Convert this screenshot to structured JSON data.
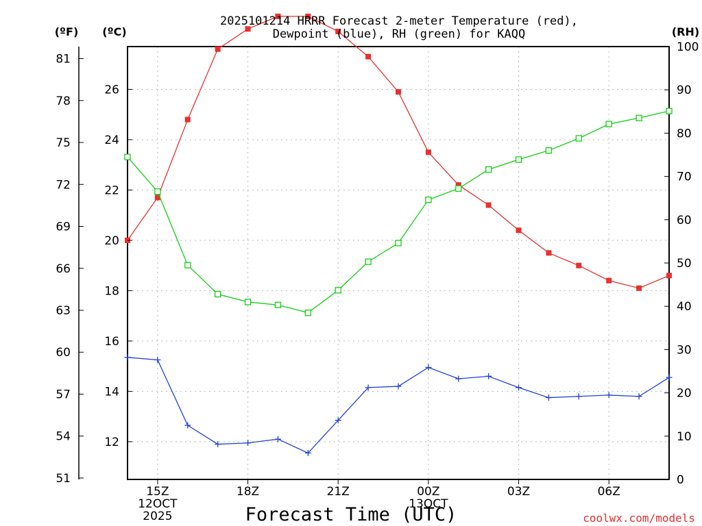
{
  "chart_data": {
    "type": "line",
    "title": [
      "2025101214 HRRR Forecast 2-meter Temperature (red),",
      "Dewpoint (blue), RH (green) for KAQQ"
    ],
    "xlabel": "Forecast Time (UTC)",
    "watermark": "coolwx.com/models",
    "unit_labels": {
      "fahrenheit": "(ºF)",
      "celsius": "(ºC)",
      "rh": "(RH)"
    },
    "x_hours": [
      14,
      15,
      16,
      17,
      18,
      19,
      20,
      21,
      22,
      23,
      24,
      25,
      26,
      27,
      28,
      29,
      30,
      31,
      32
    ],
    "xlim": [
      14,
      32
    ],
    "x_ticks": [
      {
        "hour": 15,
        "lines": [
          "15Z",
          "12OCT",
          "2025"
        ]
      },
      {
        "hour": 18,
        "lines": [
          "18Z"
        ]
      },
      {
        "hour": 21,
        "lines": [
          "21Z"
        ]
      },
      {
        "hour": 24,
        "lines": [
          "00Z",
          "13OCT"
        ]
      },
      {
        "hour": 27,
        "lines": [
          "03Z"
        ]
      },
      {
        "hour": 30,
        "lines": [
          "06Z"
        ]
      }
    ],
    "celsius_axis": {
      "range": [
        10.5,
        27.7
      ],
      "ticks": [
        12,
        14,
        16,
        18,
        20,
        22,
        24,
        26
      ]
    },
    "fahrenheit_axis": {
      "ticks": [
        51,
        54,
        57,
        60,
        63,
        66,
        69,
        72,
        75,
        78,
        81
      ]
    },
    "rh_axis": {
      "range": [
        0,
        100
      ],
      "ticks": [
        0,
        10,
        20,
        30,
        40,
        50,
        60,
        70,
        80,
        90,
        100
      ]
    },
    "series": [
      {
        "name": "2-meter Temperature",
        "unit": "C",
        "color": "#e83030",
        "marker": "filled-square",
        "values": [
          20.0,
          21.7,
          24.8,
          27.6,
          28.4,
          28.9,
          28.9,
          28.3,
          27.3,
          25.9,
          23.5,
          22.2,
          21.4,
          20.4,
          19.5,
          19.0,
          18.4,
          18.1,
          18.6
        ]
      },
      {
        "name": "Dewpoint",
        "unit": "C",
        "color": "#2040e0",
        "marker": "plus",
        "values": [
          15.35,
          15.25,
          12.65,
          11.9,
          11.95,
          12.1,
          11.55,
          12.85,
          14.15,
          14.2,
          14.95,
          14.5,
          14.6,
          14.15,
          13.75,
          13.8,
          13.85,
          13.8,
          14.55
        ]
      },
      {
        "name": "RH",
        "unit": "%",
        "color": "#10d010",
        "marker": "open-square",
        "values": [
          74.5,
          66.5,
          49.5,
          42.8,
          41.0,
          40.3,
          38.5,
          43.7,
          50.3,
          54.6,
          64.6,
          67.2,
          71.6,
          73.9,
          76.0,
          78.8,
          82.1,
          83.5,
          85.1
        ]
      }
    ]
  }
}
